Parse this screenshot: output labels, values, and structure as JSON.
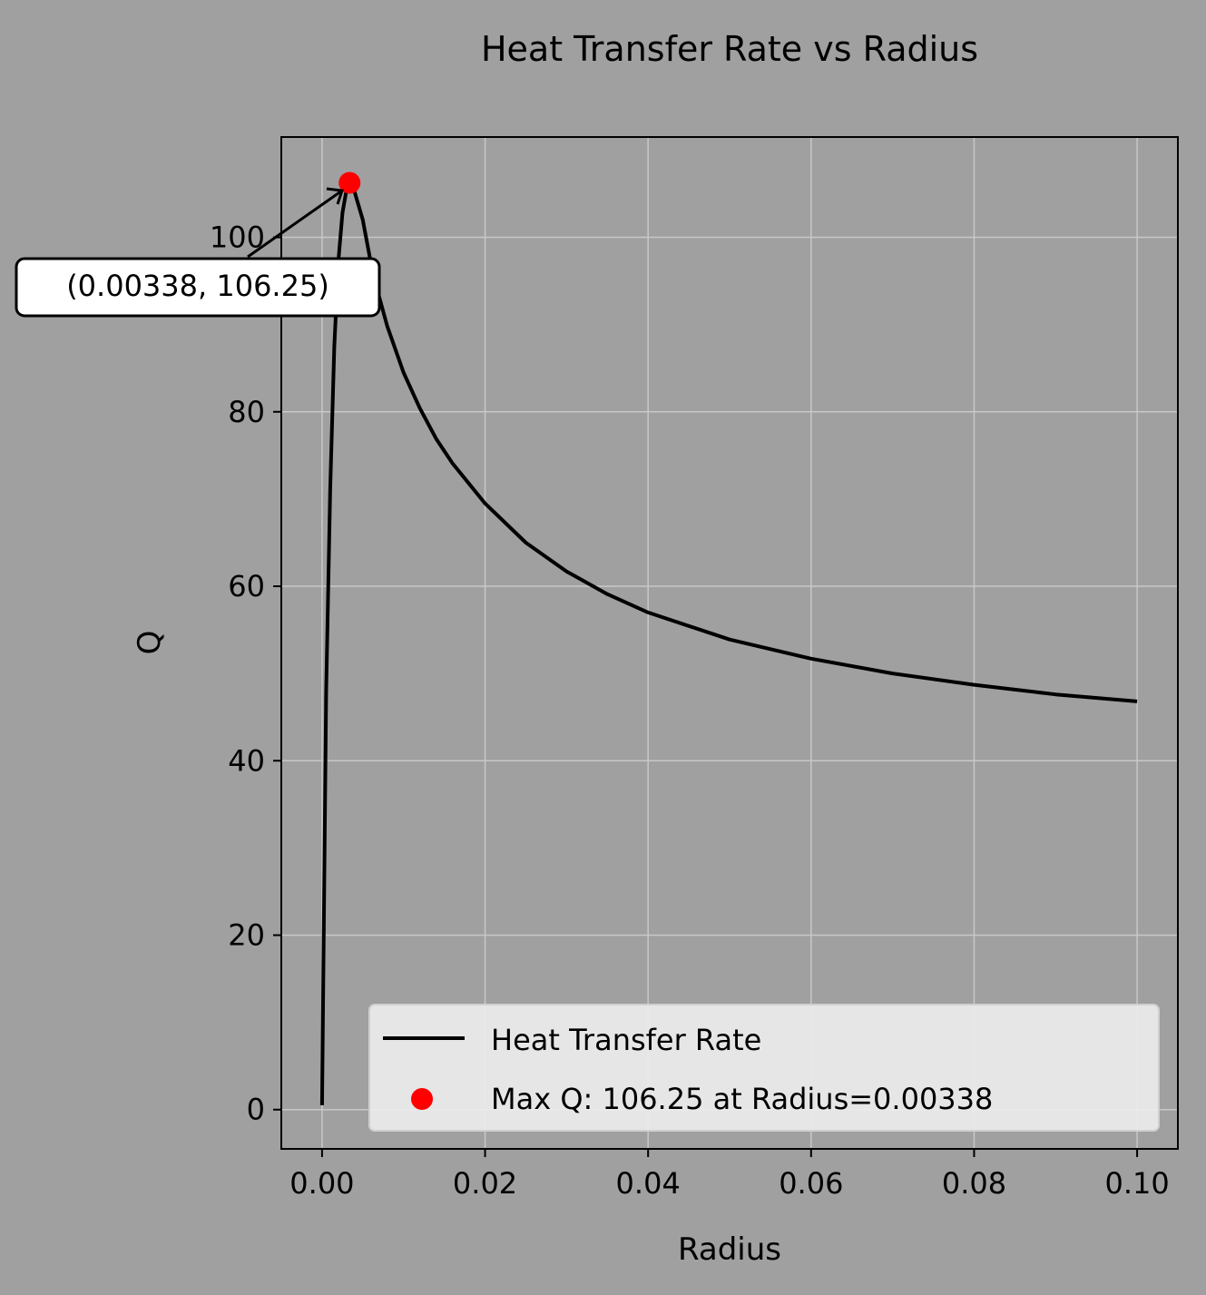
{
  "chart_data": {
    "type": "line",
    "title": "Heat Transfer Rate vs Radius",
    "xlabel": "Radius",
    "ylabel": "Q",
    "xlim": [
      -0.005,
      0.105
    ],
    "ylim": [
      -4.5,
      111.5
    ],
    "xticks": [
      0.0,
      0.02,
      0.04,
      0.06,
      0.08,
      0.1
    ],
    "xtick_labels": [
      "0.00",
      "0.02",
      "0.04",
      "0.06",
      "0.08",
      "0.10"
    ],
    "yticks": [
      0,
      20,
      40,
      60,
      80,
      100
    ],
    "ytick_labels": [
      "0",
      "20",
      "40",
      "60",
      "80",
      "100"
    ],
    "grid": true,
    "legend_position": "lower-right",
    "series": [
      {
        "name": "Heat Transfer Rate",
        "type": "line",
        "color": "#000000",
        "x": [
          0.0,
          0.0005,
          0.001,
          0.0015,
          0.002,
          0.0025,
          0.003,
          0.00338,
          0.004,
          0.005,
          0.006,
          0.007,
          0.008,
          0.01,
          0.012,
          0.014,
          0.016,
          0.02,
          0.025,
          0.03,
          0.035,
          0.04,
          0.05,
          0.06,
          0.07,
          0.08,
          0.09,
          0.1
        ],
        "y": [
          0.5,
          47.8,
          71.2,
          87.5,
          97.3,
          102.8,
          105.5,
          106.25,
          105.2,
          102.0,
          97.0,
          93.2,
          89.8,
          84.5,
          80.4,
          76.9,
          74.1,
          69.5,
          65.0,
          61.7,
          59.1,
          57.0,
          53.9,
          51.7,
          50.0,
          48.7,
          47.6,
          46.8
        ]
      },
      {
        "name": "Max Q: 106.25 at Radius=0.00338",
        "type": "scatter",
        "color": "#ff0000",
        "x": [
          0.00338
        ],
        "y": [
          106.25
        ]
      }
    ],
    "annotation": {
      "text": "(0.00338, 106.25)",
      "x": 0.00338,
      "y": 106.25
    }
  },
  "colors": {
    "background": "#a0a0a0",
    "line": "#000000",
    "marker": "#ff0000",
    "grid": "#c8c8c8",
    "legend_bg": "#ececec"
  }
}
